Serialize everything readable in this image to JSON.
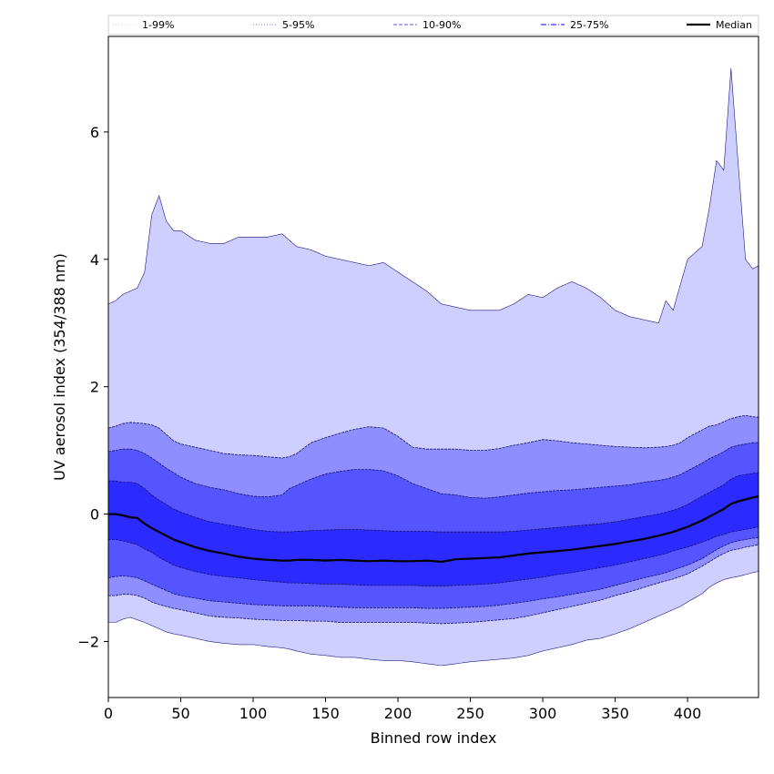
{
  "chart_data": {
    "type": "area",
    "xlabel": "Binned row index",
    "ylabel": "UV aerosol index (354/388 nm)",
    "xlim": [
      0,
      449
    ],
    "ylim": [
      -2.88,
      7.5
    ],
    "xticks": [
      0,
      50,
      100,
      150,
      200,
      250,
      300,
      350,
      400
    ],
    "yticks": [
      -2,
      0,
      2,
      4,
      6
    ],
    "legend_position": "top",
    "legend": [
      {
        "label": "1-99%",
        "style": "dotted",
        "color": "#d8d8ff"
      },
      {
        "label": "5-95%",
        "style": "dotted",
        "color": "#8888ee"
      },
      {
        "label": "10-90%",
        "style": "dashed",
        "color": "#7777ff"
      },
      {
        "label": "25-75%",
        "style": "dashdot",
        "color": "#3333ff"
      },
      {
        "label": "Median",
        "style": "solid",
        "color": "#000000"
      }
    ],
    "x": [
      0,
      5,
      10,
      15,
      20,
      25,
      30,
      35,
      40,
      45,
      50,
      60,
      70,
      80,
      90,
      100,
      110,
      120,
      125,
      130,
      140,
      150,
      160,
      170,
      180,
      190,
      200,
      210,
      220,
      230,
      240,
      250,
      260,
      270,
      280,
      290,
      300,
      310,
      320,
      330,
      340,
      350,
      360,
      370,
      380,
      385,
      390,
      395,
      400,
      410,
      415,
      420,
      425,
      430,
      435,
      440,
      445,
      449
    ],
    "series": [
      {
        "name": "1-99%",
        "color": "#ceceff",
        "upper": [
          3.3,
          3.35,
          3.45,
          3.5,
          3.55,
          3.8,
          4.7,
          5.0,
          4.6,
          4.45,
          4.45,
          4.3,
          4.25,
          4.25,
          4.35,
          4.35,
          4.35,
          4.4,
          4.3,
          4.2,
          4.15,
          4.05,
          4.0,
          3.95,
          3.9,
          3.95,
          3.8,
          3.65,
          3.5,
          3.3,
          3.25,
          3.2,
          3.2,
          3.2,
          3.3,
          3.45,
          3.4,
          3.55,
          3.65,
          3.55,
          3.4,
          3.2,
          3.1,
          3.05,
          3.0,
          3.35,
          3.2,
          3.6,
          4.0,
          4.2,
          4.8,
          5.55,
          5.4,
          7.0,
          5.5,
          4.0,
          3.85,
          3.9
        ],
        "lower": [
          -1.7,
          -1.7,
          -1.65,
          -1.62,
          -1.66,
          -1.7,
          -1.75,
          -1.8,
          -1.85,
          -1.88,
          -1.9,
          -1.95,
          -2.0,
          -2.03,
          -2.05,
          -2.05,
          -2.08,
          -2.1,
          -2.12,
          -2.15,
          -2.2,
          -2.22,
          -2.25,
          -2.25,
          -2.28,
          -2.3,
          -2.3,
          -2.32,
          -2.35,
          -2.38,
          -2.35,
          -2.32,
          -2.3,
          -2.28,
          -2.26,
          -2.22,
          -2.15,
          -2.1,
          -2.05,
          -1.98,
          -1.95,
          -1.88,
          -1.8,
          -1.7,
          -1.6,
          -1.55,
          -1.5,
          -1.45,
          -1.38,
          -1.25,
          -1.15,
          -1.08,
          -1.03,
          -1.0,
          -0.98,
          -0.95,
          -0.92,
          -0.9
        ]
      },
      {
        "name": "5-95%",
        "color": "#8e8eff",
        "upper": [
          1.35,
          1.38,
          1.42,
          1.44,
          1.43,
          1.42,
          1.4,
          1.35,
          1.25,
          1.15,
          1.1,
          1.05,
          1.0,
          0.95,
          0.93,
          0.92,
          0.9,
          0.88,
          0.9,
          0.95,
          1.12,
          1.2,
          1.27,
          1.33,
          1.37,
          1.35,
          1.22,
          1.05,
          1.02,
          1.02,
          1.02,
          1.0,
          1.0,
          1.03,
          1.08,
          1.12,
          1.17,
          1.15,
          1.12,
          1.1,
          1.08,
          1.06,
          1.05,
          1.04,
          1.05,
          1.06,
          1.08,
          1.12,
          1.2,
          1.32,
          1.38,
          1.4,
          1.45,
          1.5,
          1.53,
          1.55,
          1.53,
          1.52
        ],
        "lower": [
          -1.28,
          -1.28,
          -1.26,
          -1.26,
          -1.28,
          -1.32,
          -1.38,
          -1.42,
          -1.45,
          -1.48,
          -1.5,
          -1.55,
          -1.6,
          -1.62,
          -1.63,
          -1.65,
          -1.66,
          -1.67,
          -1.67,
          -1.67,
          -1.68,
          -1.68,
          -1.7,
          -1.7,
          -1.7,
          -1.7,
          -1.7,
          -1.7,
          -1.71,
          -1.72,
          -1.71,
          -1.7,
          -1.68,
          -1.66,
          -1.64,
          -1.6,
          -1.55,
          -1.5,
          -1.45,
          -1.4,
          -1.35,
          -1.28,
          -1.22,
          -1.15,
          -1.08,
          -1.05,
          -1.02,
          -0.98,
          -0.94,
          -0.82,
          -0.75,
          -0.68,
          -0.62,
          -0.57,
          -0.55,
          -0.52,
          -0.5,
          -0.48
        ]
      },
      {
        "name": "10-90%",
        "color": "#5555ff",
        "upper": [
          0.98,
          1.0,
          1.02,
          1.02,
          1.0,
          0.95,
          0.88,
          0.8,
          0.72,
          0.65,
          0.58,
          0.48,
          0.42,
          0.38,
          0.32,
          0.28,
          0.27,
          0.3,
          0.4,
          0.45,
          0.55,
          0.63,
          0.67,
          0.7,
          0.7,
          0.68,
          0.6,
          0.48,
          0.4,
          0.32,
          0.3,
          0.26,
          0.25,
          0.27,
          0.3,
          0.33,
          0.35,
          0.37,
          0.38,
          0.4,
          0.42,
          0.44,
          0.46,
          0.5,
          0.53,
          0.55,
          0.58,
          0.62,
          0.68,
          0.8,
          0.87,
          0.92,
          0.98,
          1.05,
          1.08,
          1.1,
          1.12,
          1.12
        ],
        "lower": [
          -1.0,
          -0.98,
          -0.97,
          -0.98,
          -1.0,
          -1.05,
          -1.1,
          -1.15,
          -1.2,
          -1.25,
          -1.28,
          -1.32,
          -1.36,
          -1.38,
          -1.4,
          -1.42,
          -1.43,
          -1.44,
          -1.44,
          -1.44,
          -1.44,
          -1.45,
          -1.46,
          -1.47,
          -1.47,
          -1.47,
          -1.47,
          -1.47,
          -1.48,
          -1.48,
          -1.47,
          -1.46,
          -1.45,
          -1.43,
          -1.4,
          -1.37,
          -1.33,
          -1.3,
          -1.26,
          -1.22,
          -1.18,
          -1.12,
          -1.06,
          -1.0,
          -0.95,
          -0.92,
          -0.88,
          -0.84,
          -0.8,
          -0.7,
          -0.63,
          -0.56,
          -0.5,
          -0.45,
          -0.42,
          -0.4,
          -0.38,
          -0.37
        ]
      },
      {
        "name": "25-75%",
        "color": "#2b2bff",
        "upper": [
          0.52,
          0.52,
          0.5,
          0.5,
          0.48,
          0.4,
          0.3,
          0.22,
          0.15,
          0.08,
          0.03,
          -0.05,
          -0.12,
          -0.16,
          -0.2,
          -0.24,
          -0.27,
          -0.28,
          -0.28,
          -0.27,
          -0.26,
          -0.25,
          -0.24,
          -0.24,
          -0.25,
          -0.26,
          -0.27,
          -0.27,
          -0.27,
          -0.28,
          -0.28,
          -0.28,
          -0.28,
          -0.28,
          -0.27,
          -0.25,
          -0.23,
          -0.21,
          -0.19,
          -0.17,
          -0.15,
          -0.12,
          -0.08,
          -0.04,
          0.0,
          0.03,
          0.06,
          0.1,
          0.15,
          0.28,
          0.34,
          0.4,
          0.46,
          0.55,
          0.6,
          0.62,
          0.64,
          0.65
        ],
        "lower": [
          -0.4,
          -0.4,
          -0.42,
          -0.45,
          -0.48,
          -0.55,
          -0.6,
          -0.68,
          -0.74,
          -0.8,
          -0.84,
          -0.9,
          -0.95,
          -0.98,
          -1.0,
          -1.03,
          -1.05,
          -1.07,
          -1.08,
          -1.08,
          -1.09,
          -1.1,
          -1.1,
          -1.11,
          -1.12,
          -1.12,
          -1.12,
          -1.12,
          -1.13,
          -1.13,
          -1.12,
          -1.11,
          -1.1,
          -1.08,
          -1.05,
          -1.02,
          -0.99,
          -0.95,
          -0.92,
          -0.88,
          -0.84,
          -0.8,
          -0.75,
          -0.7,
          -0.65,
          -0.62,
          -0.58,
          -0.55,
          -0.52,
          -0.44,
          -0.4,
          -0.35,
          -0.32,
          -0.28,
          -0.26,
          -0.24,
          -0.22,
          -0.2
        ]
      },
      {
        "name": "Median",
        "color": "#000000",
        "values": [
          0.0,
          0.0,
          -0.02,
          -0.05,
          -0.06,
          -0.15,
          -0.22,
          -0.28,
          -0.34,
          -0.4,
          -0.44,
          -0.52,
          -0.58,
          -0.62,
          -0.67,
          -0.7,
          -0.72,
          -0.73,
          -0.73,
          -0.72,
          -0.72,
          -0.73,
          -0.72,
          -0.73,
          -0.74,
          -0.73,
          -0.74,
          -0.74,
          -0.73,
          -0.75,
          -0.71,
          -0.7,
          -0.69,
          -0.68,
          -0.65,
          -0.62,
          -0.6,
          -0.58,
          -0.56,
          -0.53,
          -0.5,
          -0.47,
          -0.43,
          -0.39,
          -0.34,
          -0.31,
          -0.28,
          -0.24,
          -0.2,
          -0.1,
          -0.04,
          0.02,
          0.08,
          0.16,
          0.2,
          0.23,
          0.26,
          0.28
        ]
      }
    ]
  }
}
